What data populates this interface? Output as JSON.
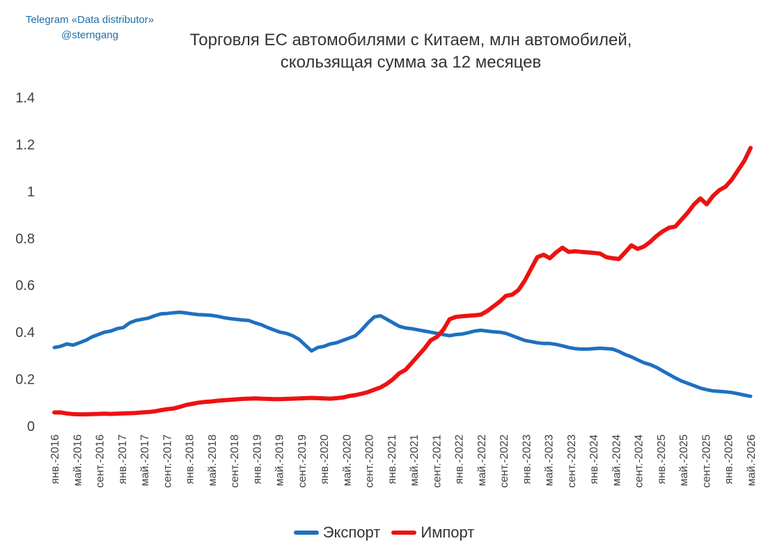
{
  "watermark": {
    "line1": "Telegram «Data distributor»",
    "line2": "@sterngang"
  },
  "chart_data": {
    "type": "line",
    "title": "Торговля ЕС автомобилями с Китаем, млн автомобилей,\nскользящая сумма за 12 месяцев",
    "xlabel": "",
    "ylabel": "",
    "ylim": [
      0,
      1.4
    ],
    "y_ticks": [
      "0",
      "0.2",
      "0.4",
      "0.6",
      "0.8",
      "1",
      "1.2",
      "1.4"
    ],
    "grid": false,
    "legend_position": "bottom",
    "x_tick_labels": [
      "янв.-2016",
      "май.-2016",
      "сент.-2016",
      "янв.-2017",
      "май.-2017",
      "сент.-2017",
      "янв.-2018",
      "май.-2018",
      "сент.-2018",
      "янв.-2019",
      "май.-2019",
      "сент.-2019",
      "янв.-2020",
      "май.-2020",
      "сент.-2020",
      "янв.-2021",
      "май.-2021",
      "сент.-2021",
      "янв.-2022",
      "май.-2022",
      "сент.-2022",
      "янв.-2023",
      "май.-2023",
      "сент.-2023",
      "янв.-2024",
      "май.-2024",
      "сент.-2024",
      "янв.-2025",
      "май.-2025",
      "сент.-2025",
      "янв.-2026",
      "май.-2026"
    ],
    "series": [
      {
        "name": "Экспорт",
        "color": "#1f6fbf",
        "values": [
          0.335,
          0.34,
          0.35,
          0.345,
          0.355,
          0.365,
          0.38,
          0.39,
          0.4,
          0.405,
          0.415,
          0.42,
          0.44,
          0.45,
          0.455,
          0.46,
          0.47,
          0.478,
          0.48,
          0.483,
          0.485,
          0.482,
          0.478,
          0.475,
          0.474,
          0.472,
          0.468,
          0.462,
          0.458,
          0.455,
          0.452,
          0.45,
          0.44,
          0.432,
          0.42,
          0.41,
          0.4,
          0.395,
          0.385,
          0.37,
          0.345,
          0.32,
          0.335,
          0.34,
          0.35,
          0.355,
          0.365,
          0.375,
          0.385,
          0.41,
          0.44,
          0.465,
          0.47,
          0.455,
          0.44,
          0.425,
          0.418,
          0.415,
          0.41,
          0.405,
          0.4,
          0.395,
          0.39,
          0.385,
          0.39,
          0.392,
          0.398,
          0.405,
          0.408,
          0.405,
          0.402,
          0.4,
          0.395,
          0.385,
          0.375,
          0.365,
          0.36,
          0.355,
          0.352,
          0.352,
          0.348,
          0.342,
          0.335,
          0.33,
          0.328,
          0.328,
          0.33,
          0.332,
          0.33,
          0.328,
          0.318,
          0.305,
          0.295,
          0.282,
          0.27,
          0.262,
          0.25,
          0.235,
          0.22,
          0.205,
          0.192,
          0.182,
          0.172,
          0.162,
          0.155,
          0.15,
          0.148,
          0.146,
          0.143,
          0.138,
          0.132,
          0.127
        ]
      },
      {
        "name": "Импорт",
        "color": "#ee1111",
        "values": [
          0.058,
          0.058,
          0.054,
          0.051,
          0.05,
          0.05,
          0.051,
          0.052,
          0.053,
          0.052,
          0.053,
          0.054,
          0.055,
          0.056,
          0.058,
          0.06,
          0.063,
          0.068,
          0.072,
          0.075,
          0.082,
          0.09,
          0.095,
          0.1,
          0.103,
          0.105,
          0.108,
          0.11,
          0.112,
          0.114,
          0.116,
          0.117,
          0.118,
          0.117,
          0.116,
          0.115,
          0.115,
          0.116,
          0.117,
          0.118,
          0.119,
          0.12,
          0.119,
          0.118,
          0.117,
          0.119,
          0.122,
          0.128,
          0.132,
          0.138,
          0.145,
          0.155,
          0.165,
          0.18,
          0.2,
          0.225,
          0.24,
          0.27,
          0.3,
          0.33,
          0.365,
          0.38,
          0.41,
          0.455,
          0.465,
          0.468,
          0.47,
          0.472,
          0.475,
          0.49,
          0.51,
          0.53,
          0.555,
          0.56,
          0.58,
          0.62,
          0.67,
          0.72,
          0.73,
          0.715,
          0.74,
          0.76,
          0.742,
          0.745,
          0.742,
          0.74,
          0.738,
          0.735,
          0.72,
          0.715,
          0.712,
          0.74,
          0.77,
          0.755,
          0.765,
          0.785,
          0.81,
          0.83,
          0.845,
          0.85,
          0.88,
          0.91,
          0.945,
          0.97,
          0.945,
          0.98,
          1.005,
          1.02,
          1.05,
          1.09,
          1.13,
          1.185
        ]
      }
    ]
  }
}
